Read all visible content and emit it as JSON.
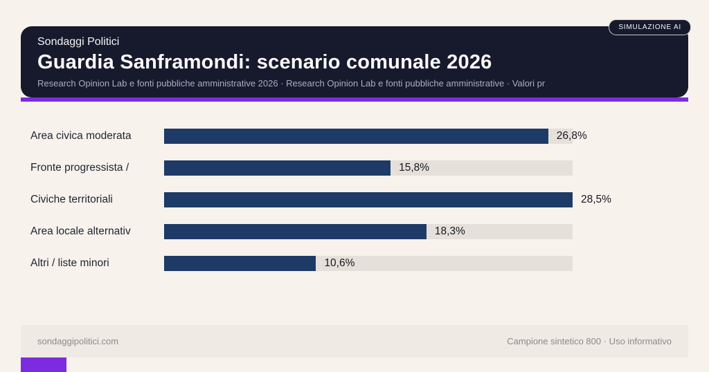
{
  "badge": {
    "label": "SIMULAZIONE AI"
  },
  "header": {
    "kicker": "Sondaggi Politici",
    "title": "Guardia Sanframondi: scenario comunale 2026",
    "subtitle": "Research Opinion Lab e fonti pubbliche amministrative 2026 · Research Opinion Lab e fonti pubbliche amministrative · Valori pr"
  },
  "footer": {
    "left": "sondaggipolitici.com",
    "right": "Campione sintetico 800 · Uso informativo"
  },
  "colors": {
    "background": "#f7f2ec",
    "header_bg": "#171a2d",
    "accent_purple": "#7d2be0",
    "bar": "#1e3a66",
    "track": "#e5e0d9",
    "footer_bg": "#efeae3"
  },
  "chart_data": {
    "type": "bar",
    "orientation": "horizontal",
    "title": "Guardia Sanframondi: scenario comunale 2026",
    "categories": [
      "Area civica moderata",
      "Fronte progressista /",
      "Civiche territoriali",
      "Area locale alternativ",
      "Altri / liste minori"
    ],
    "values": [
      26.8,
      15.8,
      28.5,
      18.3,
      10.6
    ],
    "value_labels": [
      "26,8%",
      "15,8%",
      "28,5%",
      "18,3%",
      "10,6%"
    ],
    "xlim": [
      0,
      28.5
    ],
    "grid": false,
    "legend": false
  }
}
